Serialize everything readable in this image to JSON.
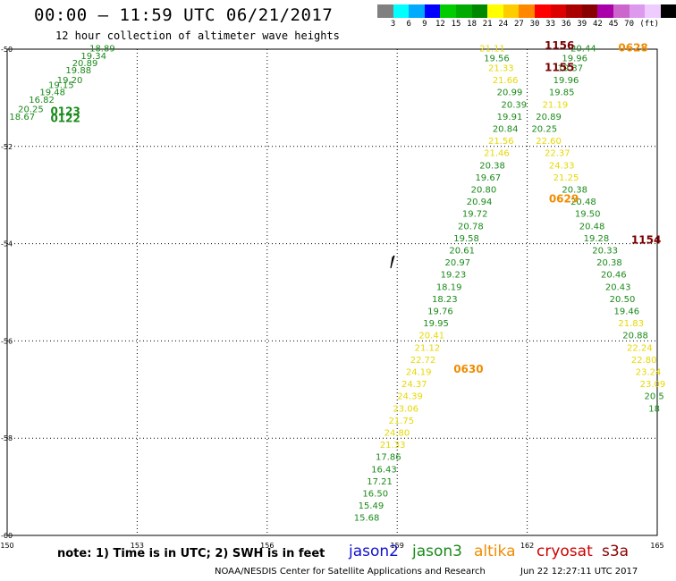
{
  "header": {
    "title": "00:00 – 11:59 UTC 06/21/2017",
    "subtitle": "12 hour collection of altimeter wave heights"
  },
  "colorbar": {
    "unit": "(ft)",
    "colors": [
      "#808080",
      "#00ffff",
      "#00aaff",
      "#0000ff",
      "#00cc00",
      "#00aa00",
      "#008800",
      "#ffff00",
      "#ffcc00",
      "#ff8800",
      "#ff0000",
      "#dd0000",
      "#aa0000",
      "#880000",
      "#aa00aa",
      "#cc66cc",
      "#dd99ee",
      "#eeccff",
      "#000000"
    ],
    "labels": [
      "3",
      "6",
      "9",
      "12",
      "15",
      "18",
      "21",
      "24",
      "27",
      "30",
      "33",
      "36",
      "39",
      "42",
      "45",
      "70"
    ]
  },
  "map": {
    "lon_range": [
      150,
      165
    ],
    "lat_range": [
      -60,
      -50
    ],
    "lon_ticks": [
      "150",
      "153",
      "156",
      "159",
      "162",
      "165"
    ],
    "lat_ticks": [
      "-50",
      "-52",
      "-54",
      "-56",
      "-58",
      "-60"
    ]
  },
  "colors": {
    "green": "#1a8a1a",
    "yellow": "#e6d800",
    "orange": "#f08c00",
    "darkred": "#7a0000"
  },
  "track_labels": [
    {
      "text": "0123",
      "color": "green",
      "lon": 151.0,
      "lat": -51.35
    },
    {
      "text": "0122",
      "color": "green",
      "lon": 151.0,
      "lat": -51.5
    },
    {
      "text": "0630",
      "color": "orange",
      "lon": 160.3,
      "lat": -56.65
    },
    {
      "text": "0629",
      "color": "orange",
      "lon": 162.5,
      "lat": -53.15
    },
    {
      "text": "0628",
      "color": "orange",
      "lon": 164.1,
      "lat": -50.05
    },
    {
      "text": "1156",
      "color": "darkred",
      "lon": 162.4,
      "lat": -50.0
    },
    {
      "text": "1155",
      "color": "darkred",
      "lon": 162.4,
      "lat": -50.45
    },
    {
      "text": "1154",
      "color": "darkred",
      "lon": 164.4,
      "lat": -54.0
    }
  ],
  "tracks": [
    {
      "name": "nw",
      "points": [
        {
          "v": "18.89",
          "c": "green",
          "lon": 151.9,
          "lat": -50.05
        },
        {
          "v": "19.34",
          "c": "green",
          "lon": 151.7,
          "lat": -50.2
        },
        {
          "v": "20.89",
          "c": "green",
          "lon": 151.5,
          "lat": -50.35
        },
        {
          "v": "19.88",
          "c": "green",
          "lon": 151.35,
          "lat": -50.5
        },
        {
          "v": "19.20",
          "c": "green",
          "lon": 151.15,
          "lat": -50.7
        },
        {
          "v": "19.15",
          "c": "green",
          "lon": 150.95,
          "lat": -50.8
        },
        {
          "v": "19.48",
          "c": "green",
          "lon": 150.75,
          "lat": -50.95
        },
        {
          "v": "16.82",
          "c": "green",
          "lon": 150.5,
          "lat": -51.1
        },
        {
          "v": "20.25",
          "c": "green",
          "lon": 150.25,
          "lat": -51.3
        },
        {
          "v": "18.67",
          "c": "green",
          "lon": 150.05,
          "lat": -51.45
        }
      ]
    },
    {
      "name": "asc",
      "points": [
        {
          "v": "15.68",
          "c": "green",
          "lon": 158.0,
          "lat": -59.7
        },
        {
          "v": "15.49",
          "c": "green",
          "lon": 158.1,
          "lat": -59.45
        },
        {
          "v": "16.50",
          "c": "green",
          "lon": 158.2,
          "lat": -59.2
        },
        {
          "v": "17.21",
          "c": "green",
          "lon": 158.3,
          "lat": -58.95
        },
        {
          "v": "16.43",
          "c": "green",
          "lon": 158.4,
          "lat": -58.7
        },
        {
          "v": "17.86",
          "c": "green",
          "lon": 158.5,
          "lat": -58.45
        },
        {
          "v": "21.33",
          "c": "yellow",
          "lon": 158.6,
          "lat": -58.2
        },
        {
          "v": "24.80",
          "c": "yellow",
          "lon": 158.7,
          "lat": -57.95
        },
        {
          "v": "21.75",
          "c": "yellow",
          "lon": 158.8,
          "lat": -57.7
        },
        {
          "v": "23.06",
          "c": "yellow",
          "lon": 158.9,
          "lat": -57.45
        },
        {
          "v": "24.39",
          "c": "yellow",
          "lon": 159.0,
          "lat": -57.2
        },
        {
          "v": "24.37",
          "c": "yellow",
          "lon": 159.1,
          "lat": -56.95
        },
        {
          "v": "24.19",
          "c": "yellow",
          "lon": 159.2,
          "lat": -56.7
        },
        {
          "v": "22.72",
          "c": "yellow",
          "lon": 159.3,
          "lat": -56.45
        },
        {
          "v": "21.12",
          "c": "yellow",
          "lon": 159.4,
          "lat": -56.2
        },
        {
          "v": "20.41",
          "c": "yellow",
          "lon": 159.5,
          "lat": -55.95
        },
        {
          "v": "19.95",
          "c": "green",
          "lon": 159.6,
          "lat": -55.7
        },
        {
          "v": "19.76",
          "c": "green",
          "lon": 159.7,
          "lat": -55.45
        },
        {
          "v": "18.23",
          "c": "green",
          "lon": 159.8,
          "lat": -55.2
        },
        {
          "v": "18.19",
          "c": "green",
          "lon": 159.9,
          "lat": -54.95
        },
        {
          "v": "19.23",
          "c": "green",
          "lon": 160.0,
          "lat": -54.7
        },
        {
          "v": "20.97",
          "c": "green",
          "lon": 160.1,
          "lat": -54.45
        },
        {
          "v": "20.61",
          "c": "green",
          "lon": 160.2,
          "lat": -54.2
        },
        {
          "v": "19.58",
          "c": "green",
          "lon": 160.3,
          "lat": -53.95
        },
        {
          "v": "20.78",
          "c": "green",
          "lon": 160.4,
          "lat": -53.7
        },
        {
          "v": "19.72",
          "c": "green",
          "lon": 160.5,
          "lat": -53.45
        },
        {
          "v": "20.94",
          "c": "green",
          "lon": 160.6,
          "lat": -53.2
        },
        {
          "v": "20.80",
          "c": "green",
          "lon": 160.7,
          "lat": -52.95
        },
        {
          "v": "19.67",
          "c": "green",
          "lon": 160.8,
          "lat": -52.7
        },
        {
          "v": "20.38",
          "c": "green",
          "lon": 160.9,
          "lat": -52.45
        },
        {
          "v": "21.46",
          "c": "yellow",
          "lon": 161.0,
          "lat": -52.2
        },
        {
          "v": "21.56",
          "c": "yellow",
          "lon": 161.1,
          "lat": -51.95
        },
        {
          "v": "20.84",
          "c": "green",
          "lon": 161.2,
          "lat": -51.7
        },
        {
          "v": "19.91",
          "c": "green",
          "lon": 161.3,
          "lat": -51.45
        },
        {
          "v": "20.39",
          "c": "green",
          "lon": 161.4,
          "lat": -51.2
        },
        {
          "v": "20.99",
          "c": "green",
          "lon": 161.3,
          "lat": -50.95
        },
        {
          "v": "21.66",
          "c": "yellow",
          "lon": 161.2,
          "lat": -50.7
        },
        {
          "v": "21.33",
          "c": "yellow",
          "lon": 161.1,
          "lat": -50.45
        },
        {
          "v": "19.56",
          "c": "green",
          "lon": 161.0,
          "lat": -50.25
        },
        {
          "v": "21.11",
          "c": "yellow",
          "lon": 160.9,
          "lat": -50.05
        }
      ]
    },
    {
      "name": "desc",
      "points": [
        {
          "v": "20.44",
          "c": "green",
          "lon": 163.0,
          "lat": -50.05
        },
        {
          "v": "19.96",
          "c": "green",
          "lon": 162.8,
          "lat": -50.25
        },
        {
          "v": "19.37",
          "c": "green",
          "lon": 162.7,
          "lat": -50.45
        },
        {
          "v": "19.96",
          "c": "green",
          "lon": 162.6,
          "lat": -50.7
        },
        {
          "v": "19.85",
          "c": "green",
          "lon": 162.5,
          "lat": -50.95
        },
        {
          "v": "21.19",
          "c": "yellow",
          "lon": 162.35,
          "lat": -51.2
        },
        {
          "v": "20.89",
          "c": "green",
          "lon": 162.2,
          "lat": -51.45
        },
        {
          "v": "20.25",
          "c": "green",
          "lon": 162.1,
          "lat": -51.7
        },
        {
          "v": "22.60",
          "c": "yellow",
          "lon": 162.2,
          "lat": -51.95
        },
        {
          "v": "22.37",
          "c": "yellow",
          "lon": 162.4,
          "lat": -52.2
        },
        {
          "v": "24.33",
          "c": "yellow",
          "lon": 162.5,
          "lat": -52.45
        },
        {
          "v": "21.25",
          "c": "yellow",
          "lon": 162.6,
          "lat": -52.7
        },
        {
          "v": "20.38",
          "c": "green",
          "lon": 162.8,
          "lat": -52.95
        },
        {
          "v": "20.48",
          "c": "green",
          "lon": 163.0,
          "lat": -53.2
        },
        {
          "v": "19.50",
          "c": "green",
          "lon": 163.1,
          "lat": -53.45
        },
        {
          "v": "20.48",
          "c": "green",
          "lon": 163.2,
          "lat": -53.7
        },
        {
          "v": "19.28",
          "c": "green",
          "lon": 163.3,
          "lat": -53.95
        },
        {
          "v": "20.33",
          "c": "green",
          "lon": 163.5,
          "lat": -54.2
        },
        {
          "v": "20.38",
          "c": "green",
          "lon": 163.6,
          "lat": -54.45
        },
        {
          "v": "20.46",
          "c": "green",
          "lon": 163.7,
          "lat": -54.7
        },
        {
          "v": "20.43",
          "c": "green",
          "lon": 163.8,
          "lat": -54.95
        },
        {
          "v": "20.50",
          "c": "green",
          "lon": 163.9,
          "lat": -55.2
        },
        {
          "v": "19.46",
          "c": "green",
          "lon": 164.0,
          "lat": -55.45
        },
        {
          "v": "21.83",
          "c": "yellow",
          "lon": 164.1,
          "lat": -55.7
        },
        {
          "v": "20.88",
          "c": "green",
          "lon": 164.2,
          "lat": -55.95
        },
        {
          "v": "22.24",
          "c": "yellow",
          "lon": 164.3,
          "lat": -56.2
        },
        {
          "v": "22.80",
          "c": "yellow",
          "lon": 164.4,
          "lat": -56.45
        },
        {
          "v": "23.24",
          "c": "yellow",
          "lon": 164.5,
          "lat": -56.7
        },
        {
          "v": "23.09",
          "c": "yellow",
          "lon": 164.6,
          "lat": -56.95
        },
        {
          "v": "20.5",
          "c": "green",
          "lon": 164.7,
          "lat": -57.2
        },
        {
          "v": "18",
          "c": "green",
          "lon": 164.8,
          "lat": -57.45
        }
      ]
    }
  ],
  "footer": {
    "note": "note: 1) Time is in UTC; 2) SWH is in feet",
    "satellites": [
      {
        "name": "jason2",
        "color": "#1010d0"
      },
      {
        "name": "jason3",
        "color": "#1a8a1a"
      },
      {
        "name": "altika",
        "color": "#f08c00"
      },
      {
        "name": "cryosat",
        "color": "#cc0000"
      },
      {
        "name": "s3a",
        "color": "#8b0000"
      }
    ],
    "credit": "NOAA/NESDIS Center for Satellite Applications and Research",
    "timestamp": "Jun 22 12:27:11 UTC 2017"
  }
}
